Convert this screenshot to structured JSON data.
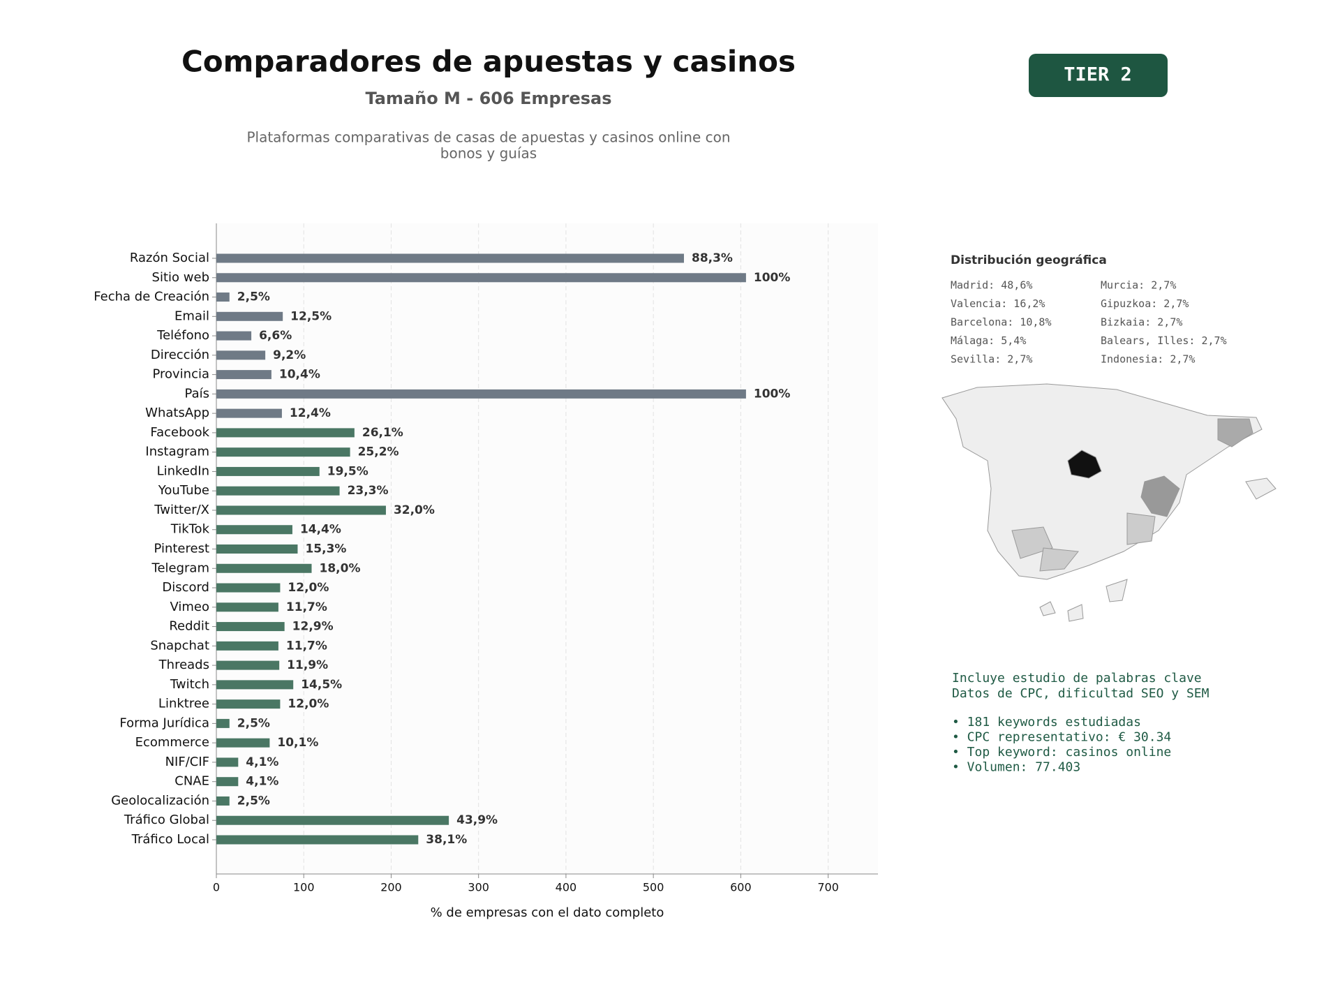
{
  "chart_data": {
    "type": "hbar",
    "title": "Comparadores de apuestas y casinos",
    "subtitle": "Tamaño M - 606 Empresas",
    "description": [
      "Plataformas comparativas de casas de apuestas y casinos online con",
      "bonos y guías"
    ],
    "x_label": "% de empresas con el dato completo",
    "categories": [
      "Razón Social",
      "Sitio web",
      "Fecha de Creación",
      "Email",
      "Teléfono",
      "Dirección",
      "Provincia",
      "País",
      "WhatsApp",
      "Facebook",
      "Instagram",
      "LinkedIn",
      "YouTube",
      "Twitter/X",
      "TikTok",
      "Pinterest",
      "Telegram",
      "Discord",
      "Vimeo",
      "Reddit",
      "Snapchat",
      "Threads",
      "Twitch",
      "Linktree",
      "Forma Jurídica",
      "Ecommerce",
      "NIF/CIF",
      "CNAE",
      "Geolocalización",
      "Tráfico Global",
      "Tráfico Local"
    ],
    "values": [
      535,
      606,
      15,
      76,
      40,
      56,
      63,
      606,
      75,
      158,
      153,
      118,
      141,
      194,
      87,
      93,
      109,
      73,
      71,
      78,
      71,
      72,
      88,
      73,
      15,
      61,
      25,
      25,
      15,
      266,
      231
    ],
    "value_labels": [
      "88,3%",
      "100%",
      "2,5%",
      "12,5%",
      "6,6%",
      "9,2%",
      "10,4%",
      "100%",
      "12,4%",
      "26,1%",
      "25,2%",
      "19,5%",
      "23,3%",
      "32,0%",
      "14,4%",
      "15,3%",
      "18,0%",
      "12,0%",
      "11,7%",
      "12,9%",
      "11,7%",
      "11,9%",
      "14,5%",
      "12,0%",
      "2,5%",
      "10,1%",
      "4,1%",
      "4,1%",
      "2,5%",
      "43,9%",
      "38,1%"
    ],
    "colors": [
      "#6f7a86",
      "#6f7a86",
      "#6f7a86",
      "#6f7a86",
      "#6f7a86",
      "#6f7a86",
      "#6f7a86",
      "#6f7a86",
      "#6f7a86",
      "#4a7764",
      "#4a7764",
      "#4a7764",
      "#4a7764",
      "#4a7764",
      "#4a7764",
      "#4a7764",
      "#4a7764",
      "#4a7764",
      "#4a7764",
      "#4a7764",
      "#4a7764",
      "#4a7764",
      "#4a7764",
      "#4a7764",
      "#4a7764",
      "#4a7764",
      "#4a7764",
      "#4a7764",
      "#4a7764",
      "#4a7764",
      "#4a7764"
    ],
    "xlim": [
      0,
      757
    ],
    "xticks": [
      0,
      100,
      200,
      300,
      400,
      500,
      600,
      700
    ],
    "grid": true
  },
  "badge": "TIER 2",
  "geo": {
    "title": "Distribución geográfica",
    "items": [
      "Madrid: 48,6%",
      "Valencia: 16,2%",
      "Barcelona: 10,8%",
      "Málaga: 5,4%",
      "Sevilla: 2,7%",
      "Murcia: 2,7%",
      "Gipuzkoa: 2,7%",
      "Bizkaia: 2,7%",
      "Balears, Illes: 2,7%",
      "Indonesia: 2,7%"
    ]
  },
  "keywords": {
    "lines": [
      "Incluye estudio de palabras clave",
      "Datos de CPC, dificultad SEO y SEM"
    ],
    "bullets": [
      "• 181 keywords estudiadas",
      "• CPC representativo: € 30.34",
      "• Top keyword: casinos online",
      "• Volumen: 77.403"
    ]
  }
}
